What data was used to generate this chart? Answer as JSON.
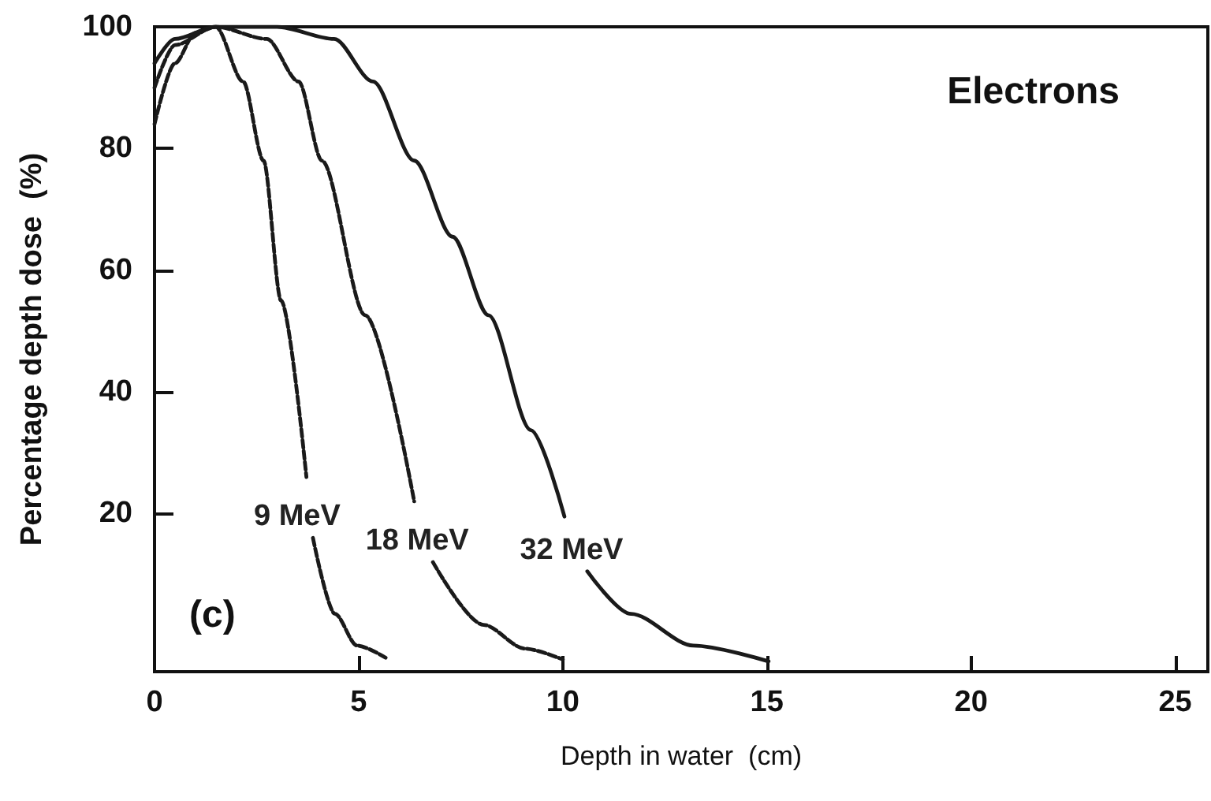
{
  "chart_data": {
    "type": "line",
    "xlabel": "Depth in water  (cm)",
    "ylabel": "Percentage depth dose  (%)",
    "annotations": [
      "Electrons",
      "(c)"
    ],
    "xlim": [
      0,
      25.8
    ],
    "xticks": [
      0,
      5,
      10,
      15,
      20,
      25
    ],
    "ylim": [
      -6,
      100
    ],
    "yticks": [
      20,
      40,
      60,
      80,
      100
    ],
    "grid": false,
    "legend": false,
    "marker": "none",
    "series": [
      {
        "name": "9 MeV",
        "color": "#1a1a1a",
        "line_style": "dashed",
        "x": [
          0,
          0.5,
          1,
          1.5,
          2.17,
          2.67,
          3.1,
          3.72,
          3.8,
          3.88,
          4.42,
          4.96,
          5.66
        ],
        "values": [
          84,
          94,
          99,
          100,
          91,
          78,
          55,
          26,
          null,
          16,
          3.5,
          -1.7,
          -3.7
        ]
      },
      {
        "name": "18 MeV",
        "color": "#1a1a1a",
        "line_style": "dashed",
        "x": [
          0,
          0.5,
          1.5,
          2.75,
          3.53,
          4.1,
          5.16,
          6.36,
          6.6,
          6.82,
          8.06,
          9.07,
          10.0
        ],
        "values": [
          90,
          97,
          100,
          98,
          91,
          78,
          52.6,
          22,
          null,
          12,
          1.7,
          -2.2,
          -4
        ]
      },
      {
        "name": "32 MeV",
        "color": "#1a1a1a",
        "line_style": "solid",
        "x": [
          0,
          0.5,
          1.5,
          3,
          4.4,
          5.35,
          6.36,
          7.3,
          8.18,
          9.22,
          10.04,
          10.3,
          10.6,
          11.67,
          13.2,
          15.04
        ],
        "values": [
          94,
          98,
          100,
          100,
          98,
          91,
          78,
          65.5,
          52.6,
          33.7,
          19.5,
          null,
          10.5,
          3.5,
          -1.7,
          -4.3
        ]
      }
    ]
  }
}
